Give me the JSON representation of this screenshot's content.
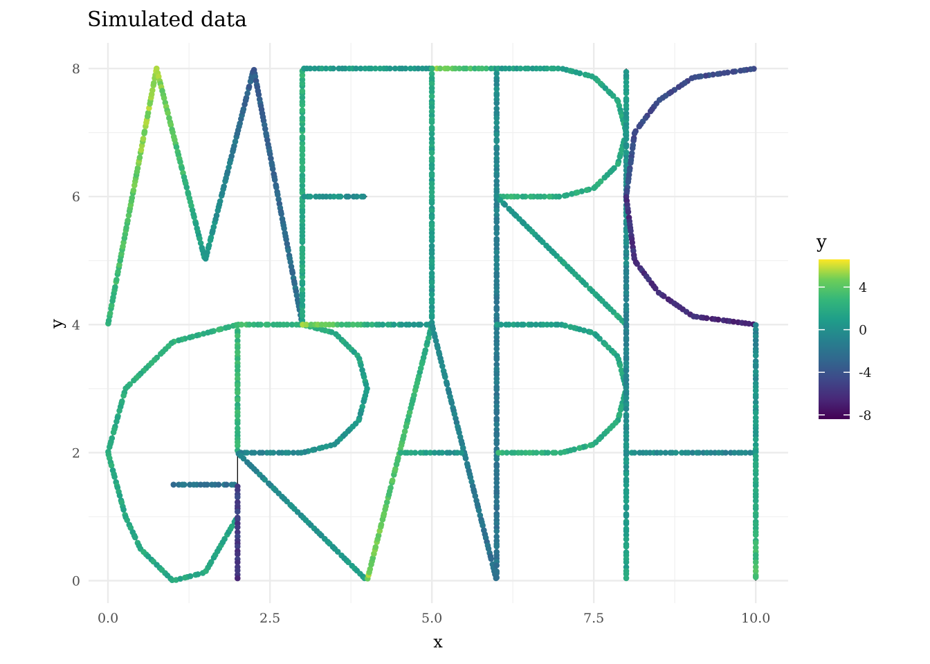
{
  "chart_data": {
    "type": "scatter",
    "title": "Simulated data",
    "xlabel": "x",
    "ylabel": "y",
    "xlim": [
      -0.3,
      10.5
    ],
    "ylim": [
      -0.35,
      8.4
    ],
    "x_ticks": [
      0,
      2.5,
      5,
      7.5,
      10
    ],
    "x_tick_labels": [
      "0.0",
      "2.5",
      "5.0",
      "7.5",
      "10.0"
    ],
    "y_ticks": [
      0,
      2,
      4,
      6,
      8
    ],
    "y_tick_labels": [
      "0",
      "2",
      "4",
      "6",
      "8"
    ],
    "grid": true,
    "legend": {
      "title": "y",
      "position": "right",
      "colorscale": "viridis",
      "range": [
        -8.4,
        6.6
      ],
      "ticks": [
        4,
        0,
        -4,
        -8
      ],
      "tick_labels": [
        "4",
        "0",
        "-4",
        "-8"
      ]
    },
    "curve": [
      {
        "name": "M",
        "points": [
          [
            0,
            4
          ],
          [
            0.75,
            8
          ],
          [
            1.5,
            5
          ],
          [
            2.25,
            8
          ],
          [
            3,
            4
          ]
        ]
      },
      {
        "name": "E-vertical",
        "points": [
          [
            3,
            4
          ],
          [
            3,
            8
          ]
        ]
      },
      {
        "name": "E-top",
        "points": [
          [
            3,
            8
          ],
          [
            5,
            8
          ]
        ]
      },
      {
        "name": "E-middle",
        "points": [
          [
            3,
            6
          ],
          [
            4,
            6
          ]
        ]
      },
      {
        "name": "T-top",
        "points": [
          [
            5,
            8
          ],
          [
            6,
            8
          ]
        ]
      },
      {
        "name": "T-stem",
        "points": [
          [
            5,
            8
          ],
          [
            5,
            4
          ]
        ]
      },
      {
        "name": "R-top-stem",
        "points": [
          [
            6,
            8
          ],
          [
            6,
            4
          ]
        ]
      },
      {
        "name": "R-top-bowl",
        "points": [
          [
            6,
            8
          ],
          [
            7,
            8
          ],
          [
            7.5,
            7.87
          ],
          [
            7.87,
            7.5
          ],
          [
            8,
            7
          ],
          [
            7.87,
            6.5
          ],
          [
            7.5,
            6.13
          ],
          [
            7,
            6
          ],
          [
            6,
            6
          ]
        ]
      },
      {
        "name": "R-top-leg",
        "points": [
          [
            6,
            6
          ],
          [
            8,
            4
          ]
        ]
      },
      {
        "name": "O-vertical",
        "points": [
          [
            8,
            4
          ],
          [
            8,
            8
          ]
        ]
      },
      {
        "name": "C-arc-top",
        "points": [
          [
            10,
            8
          ],
          [
            9.03,
            7.86
          ],
          [
            8.5,
            7.5
          ],
          [
            8.13,
            7
          ],
          [
            8,
            6
          ]
        ]
      },
      {
        "name": "C-arc-bottom",
        "points": [
          [
            8,
            6
          ],
          [
            8.13,
            5
          ],
          [
            8.5,
            4.5
          ],
          [
            9.03,
            4.13
          ],
          [
            10,
            4
          ]
        ]
      },
      {
        "name": "G-arc",
        "points": [
          [
            2,
            4
          ],
          [
            1,
            3.73
          ],
          [
            0.27,
            3
          ],
          [
            0,
            2
          ],
          [
            0.27,
            1
          ],
          [
            0.5,
            0.5
          ],
          [
            1,
            0
          ],
          [
            1.5,
            0.13
          ],
          [
            2,
            1
          ]
        ]
      },
      {
        "name": "G-bar",
        "points": [
          [
            1,
            1.5
          ],
          [
            2,
            1.5
          ]
        ]
      },
      {
        "name": "G-stem",
        "points": [
          [
            2,
            1.5
          ],
          [
            2,
            0
          ]
        ]
      },
      {
        "name": "R-bottom-stem",
        "points": [
          [
            2,
            4
          ],
          [
            2,
            0
          ]
        ]
      },
      {
        "name": "R-bottom-bowl",
        "points": [
          [
            2,
            4
          ],
          [
            3,
            4
          ],
          [
            3.5,
            3.87
          ],
          [
            3.87,
            3.5
          ],
          [
            4,
            3
          ],
          [
            3.87,
            2.5
          ],
          [
            3.5,
            2.13
          ],
          [
            3,
            2
          ],
          [
            2,
            2
          ]
        ]
      },
      {
        "name": "R-bottom-leg",
        "points": [
          [
            2,
            2
          ],
          [
            4,
            0
          ]
        ]
      },
      {
        "name": "R-bottom-top",
        "points": [
          [
            3,
            4
          ],
          [
            5,
            4
          ]
        ]
      },
      {
        "name": "A-left",
        "points": [
          [
            4,
            0
          ],
          [
            5,
            4
          ]
        ]
      },
      {
        "name": "A-right",
        "points": [
          [
            5,
            4
          ],
          [
            6,
            0
          ]
        ]
      },
      {
        "name": "A-bar",
        "points": [
          [
            4.5,
            2
          ],
          [
            5.5,
            2
          ]
        ]
      },
      {
        "name": "P-stem",
        "points": [
          [
            6,
            4
          ],
          [
            6,
            0
          ]
        ]
      },
      {
        "name": "P-bowl",
        "points": [
          [
            6,
            4
          ],
          [
            7,
            4
          ],
          [
            7.5,
            3.87
          ],
          [
            7.87,
            3.5
          ],
          [
            8,
            3
          ],
          [
            7.87,
            2.5
          ],
          [
            7.5,
            2.13
          ],
          [
            7,
            2
          ],
          [
            6,
            2
          ]
        ]
      },
      {
        "name": "H-left",
        "points": [
          [
            8,
            4
          ],
          [
            8,
            0
          ]
        ]
      },
      {
        "name": "H-bar",
        "points": [
          [
            8,
            2
          ],
          [
            10,
            2
          ]
        ]
      },
      {
        "name": "H-right",
        "points": [
          [
            10,
            4
          ],
          [
            10,
            0
          ]
        ]
      }
    ],
    "point_groups": [
      {
        "points": [
          [
            0,
            4
          ],
          [
            0.75,
            8
          ]
        ],
        "values": [
          2.5,
          5.8
        ]
      },
      {
        "points": [
          [
            0.75,
            8
          ],
          [
            1.5,
            5
          ]
        ],
        "values": [
          5.2,
          1.0
        ]
      },
      {
        "points": [
          [
            1.5,
            5
          ],
          [
            2.25,
            8
          ]
        ],
        "values": [
          1.0,
          -3.5
        ]
      },
      {
        "points": [
          [
            2.25,
            8
          ],
          [
            3,
            4
          ]
        ],
        "values": [
          -3.5,
          -2.0
        ]
      },
      {
        "points": [
          [
            3,
            4
          ],
          [
            3,
            8
          ]
        ],
        "values": [
          1.5,
          2.5
        ]
      },
      {
        "points": [
          [
            3,
            8
          ],
          [
            5,
            8
          ]
        ],
        "values": [
          1.0,
          0.5
        ]
      },
      {
        "points": [
          [
            3,
            6
          ],
          [
            4,
            6
          ]
        ],
        "values": [
          0.5,
          0.0
        ]
      },
      {
        "points": [
          [
            5,
            8
          ],
          [
            6,
            8
          ]
        ],
        "values": [
          5.5,
          2.0
        ]
      },
      {
        "points": [
          [
            5,
            8
          ],
          [
            5,
            4
          ]
        ],
        "values": [
          2.0,
          0.5
        ]
      },
      {
        "points": [
          [
            6,
            8
          ],
          [
            6,
            4
          ]
        ],
        "values": [
          0.0,
          -1.5
        ]
      },
      {
        "points": [
          [
            6,
            8
          ],
          [
            7,
            8
          ],
          [
            7.5,
            7.87
          ],
          [
            7.87,
            7.5
          ],
          [
            8,
            7
          ],
          [
            7.87,
            6.5
          ],
          [
            7.5,
            6.13
          ],
          [
            7,
            6
          ],
          [
            6,
            6
          ]
        ],
        "values": [
          1.0,
          2.5
        ]
      },
      {
        "points": [
          [
            6,
            6
          ],
          [
            8,
            4
          ]
        ],
        "values": [
          0.5,
          2.0
        ]
      },
      {
        "points": [
          [
            8,
            4
          ],
          [
            8,
            8
          ]
        ],
        "values": [
          -1.0,
          1.0
        ]
      },
      {
        "points": [
          [
            10,
            8
          ],
          [
            9.03,
            7.86
          ],
          [
            8.5,
            7.5
          ],
          [
            8.13,
            7
          ],
          [
            8,
            6
          ]
        ],
        "values": [
          -4.5,
          -4.5
        ]
      },
      {
        "points": [
          [
            8,
            6
          ],
          [
            8.13,
            5
          ],
          [
            8.5,
            4.5
          ],
          [
            9.03,
            4.13
          ],
          [
            10,
            4
          ]
        ],
        "values": [
          -6.0,
          -6.5
        ]
      },
      {
        "points": [
          [
            2,
            4
          ],
          [
            1,
            3.73
          ],
          [
            0.27,
            3
          ],
          [
            0,
            2
          ],
          [
            0.27,
            1
          ],
          [
            0.5,
            0.5
          ],
          [
            1,
            0
          ],
          [
            1.5,
            0.13
          ],
          [
            2,
            1
          ]
        ],
        "values": [
          2.5,
          1.5
        ]
      },
      {
        "points": [
          [
            1,
            1.5
          ],
          [
            2,
            1.5
          ]
        ],
        "values": [
          -2.0,
          -2.0
        ]
      },
      {
        "points": [
          [
            2,
            1.5
          ],
          [
            2,
            0
          ]
        ],
        "values": [
          -5.0,
          -6.0
        ]
      },
      {
        "points": [
          [
            2,
            4
          ],
          [
            2,
            2
          ]
        ],
        "values": [
          3.0,
          2.5
        ]
      },
      {
        "points": [
          [
            2,
            4
          ],
          [
            3,
            4
          ],
          [
            3.5,
            3.87
          ],
          [
            3.87,
            3.5
          ],
          [
            4,
            3
          ],
          [
            3.87,
            2.5
          ],
          [
            3.5,
            2.13
          ],
          [
            3,
            2
          ],
          [
            2,
            2
          ]
        ],
        "values": [
          3.0,
          -1.0
        ]
      },
      {
        "points": [
          [
            2,
            2
          ],
          [
            4,
            0
          ]
        ],
        "values": [
          -1.0,
          1.0
        ]
      },
      {
        "points": [
          [
            3,
            4
          ],
          [
            5,
            4
          ]
        ],
        "values": [
          5.0,
          0.0
        ]
      },
      {
        "points": [
          [
            4,
            0
          ],
          [
            5,
            4
          ]
        ],
        "values": [
          5.0,
          2.0
        ]
      },
      {
        "points": [
          [
            5,
            4
          ],
          [
            6,
            0
          ]
        ],
        "values": [
          0.0,
          -2.5
        ]
      },
      {
        "points": [
          [
            4.5,
            2
          ],
          [
            5.5,
            2
          ]
        ],
        "values": [
          2.0,
          0.0
        ]
      },
      {
        "points": [
          [
            6,
            4
          ],
          [
            6,
            0
          ]
        ],
        "values": [
          -1.5,
          -2.0
        ]
      },
      {
        "points": [
          [
            6,
            4
          ],
          [
            7,
            4
          ],
          [
            7.5,
            3.87
          ],
          [
            7.87,
            3.5
          ],
          [
            8,
            3
          ],
          [
            7.87,
            2.5
          ],
          [
            7.5,
            2.13
          ],
          [
            7,
            2
          ],
          [
            6,
            2
          ]
        ],
        "values": [
          1.0,
          2.5
        ]
      },
      {
        "points": [
          [
            8,
            4
          ],
          [
            8,
            0
          ]
        ],
        "values": [
          -1.0,
          1.5
        ]
      },
      {
        "points": [
          [
            8,
            2
          ],
          [
            10,
            2
          ]
        ],
        "values": [
          0.0,
          -1.0
        ]
      },
      {
        "points": [
          [
            10,
            4
          ],
          [
            10,
            0
          ]
        ],
        "values": [
          -1.0,
          3.5
        ]
      }
    ]
  }
}
